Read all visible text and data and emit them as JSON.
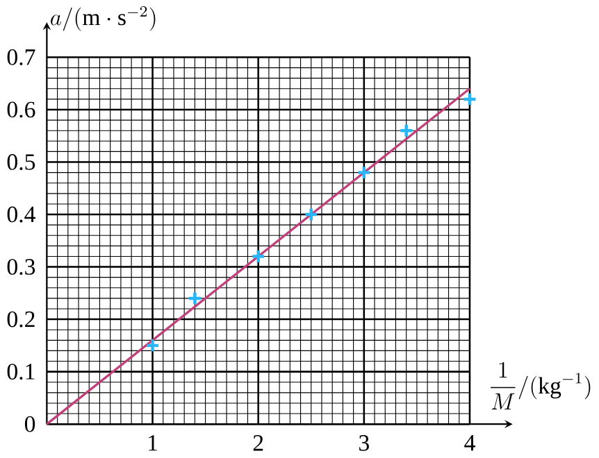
{
  "chart_data": {
    "type": "scatter",
    "xlabel": "\\dfrac{1}{M}/(\\mathrm{kg}^{-1})",
    "ylabel": "a/(\\mathrm{m}\\cdot\\mathrm{s}^{-2})",
    "xlim": [
      0,
      4
    ],
    "ylim": [
      0,
      0.7
    ],
    "xticks": [
      1,
      2,
      3,
      4
    ],
    "yticks": [
      0,
      0.1,
      0.2,
      0.3,
      0.4,
      0.5,
      0.6,
      0.7
    ],
    "grid": true,
    "series": [
      {
        "marker": "cross",
        "color": "#29b6f6",
        "x": [
          1,
          1.4,
          2,
          2.5,
          3,
          3.4,
          4
        ],
        "values": [
          0.15,
          0.24,
          0.32,
          0.4,
          0.48,
          0.56,
          0.62
        ]
      },
      {
        "type": "line",
        "color": "#c0407a",
        "x": [
          0,
          4
        ],
        "values": [
          0,
          0.64
        ]
      }
    ]
  }
}
